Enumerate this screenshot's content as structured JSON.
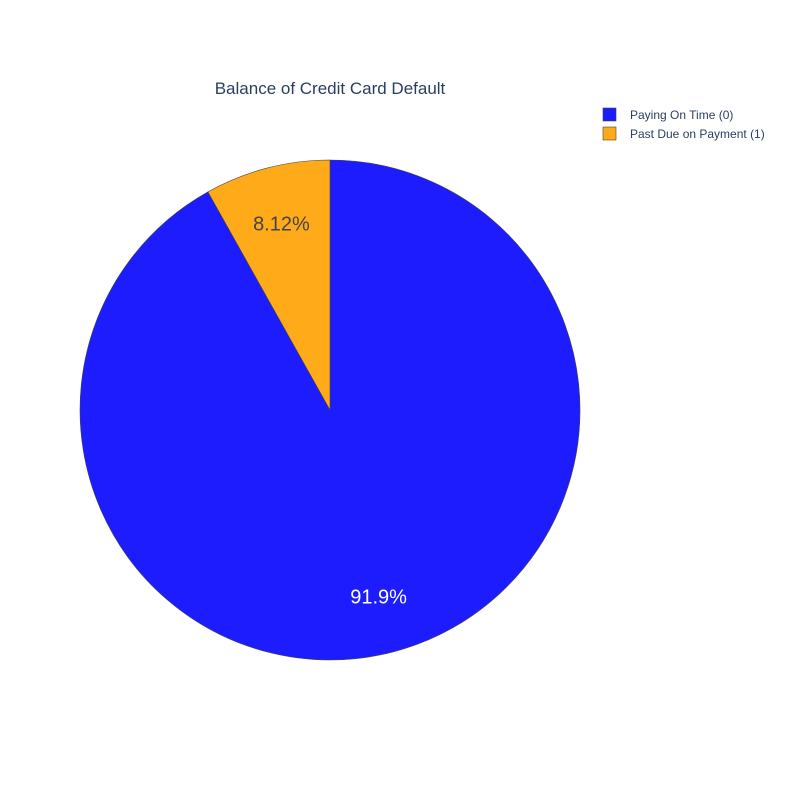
{
  "chart_data": {
    "type": "pie",
    "title": "Balance of Credit Card Default",
    "labels": [
      "Paying On Time (0)",
      "Past Due on Payment (1)"
    ],
    "values": [
      91.88,
      8.12
    ],
    "value_labels": [
      "91.9%",
      "8.12%"
    ],
    "colors": [
      "#1c1cff",
      "#ffaa19"
    ],
    "label_colors": [
      "#ffffff",
      "#444444"
    ],
    "slice_outline_color": "#444444",
    "start_angle_deg": 90,
    "direction": "clockwise",
    "legend": {
      "position": "top-right",
      "items": [
        {
          "label": "Paying On Time (0)",
          "color": "#1c1cff"
        },
        {
          "label": "Past Due on Payment (1)",
          "color": "#ffaa19"
        }
      ]
    }
  }
}
